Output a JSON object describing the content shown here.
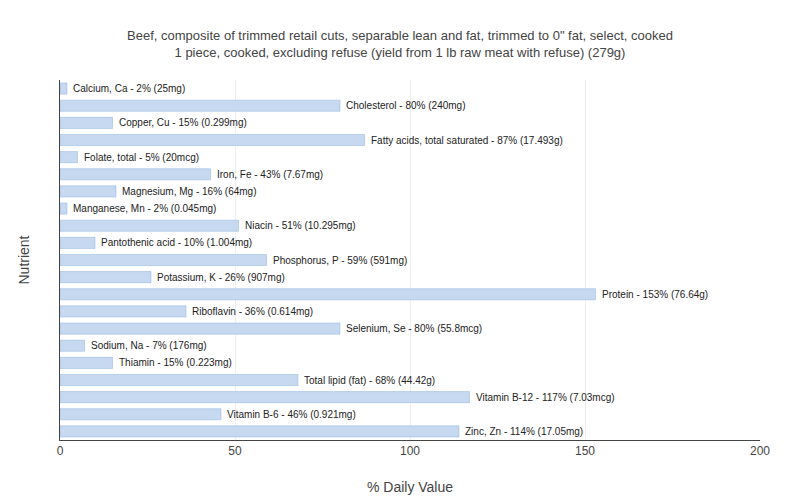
{
  "chart_data": {
    "type": "bar",
    "orientation": "horizontal",
    "title": "Beef, composite of trimmed retail cuts, separable lean and fat, trimmed to 0\" fat, select, cooked\n1 piece, cooked, excluding refuse (yield from 1 lb raw meat with refuse) (279g)",
    "x_label": "% Daily Value",
    "y_label": "Nutrient",
    "categories": [
      "Calcium, Ca - 2% (25mg)",
      "Cholesterol - 80% (240mg)",
      "Copper, Cu - 15% (0.299mg)",
      "Fatty acids, total saturated - 87% (17.493g)",
      "Folate, total - 5% (20mcg)",
      "Iron, Fe - 43% (7.67mg)",
      "Magnesium, Mg - 16% (64mg)",
      "Manganese, Mn - 2% (0.045mg)",
      "Niacin - 51% (10.295mg)",
      "Pantothenic acid - 10% (1.004mg)",
      "Phosphorus, P - 59% (591mg)",
      "Potassium, K - 26% (907mg)",
      "Protein - 153% (76.64g)",
      "Riboflavin - 36% (0.614mg)",
      "Selenium, Se - 80% (55.8mcg)",
      "Sodium, Na - 7% (176mg)",
      "Thiamin - 15% (0.223mg)",
      "Total lipid (fat) - 68% (44.42g)",
      "Vitamin B-12 - 117% (7.03mcg)",
      "Vitamin B-6 - 46% (0.921mg)",
      "Zinc, Zn - 114% (17.05mg)"
    ],
    "values": [
      2,
      80,
      15,
      87,
      5,
      43,
      16,
      2,
      51,
      10,
      59,
      26,
      153,
      36,
      80,
      7,
      15,
      68,
      117,
      46,
      114
    ],
    "color": "#c6d9f1",
    "xlim": [
      0,
      200
    ],
    "xticks": [
      0,
      50,
      100,
      150,
      200
    ],
    "grid": true,
    "tick_labels": "x"
  }
}
